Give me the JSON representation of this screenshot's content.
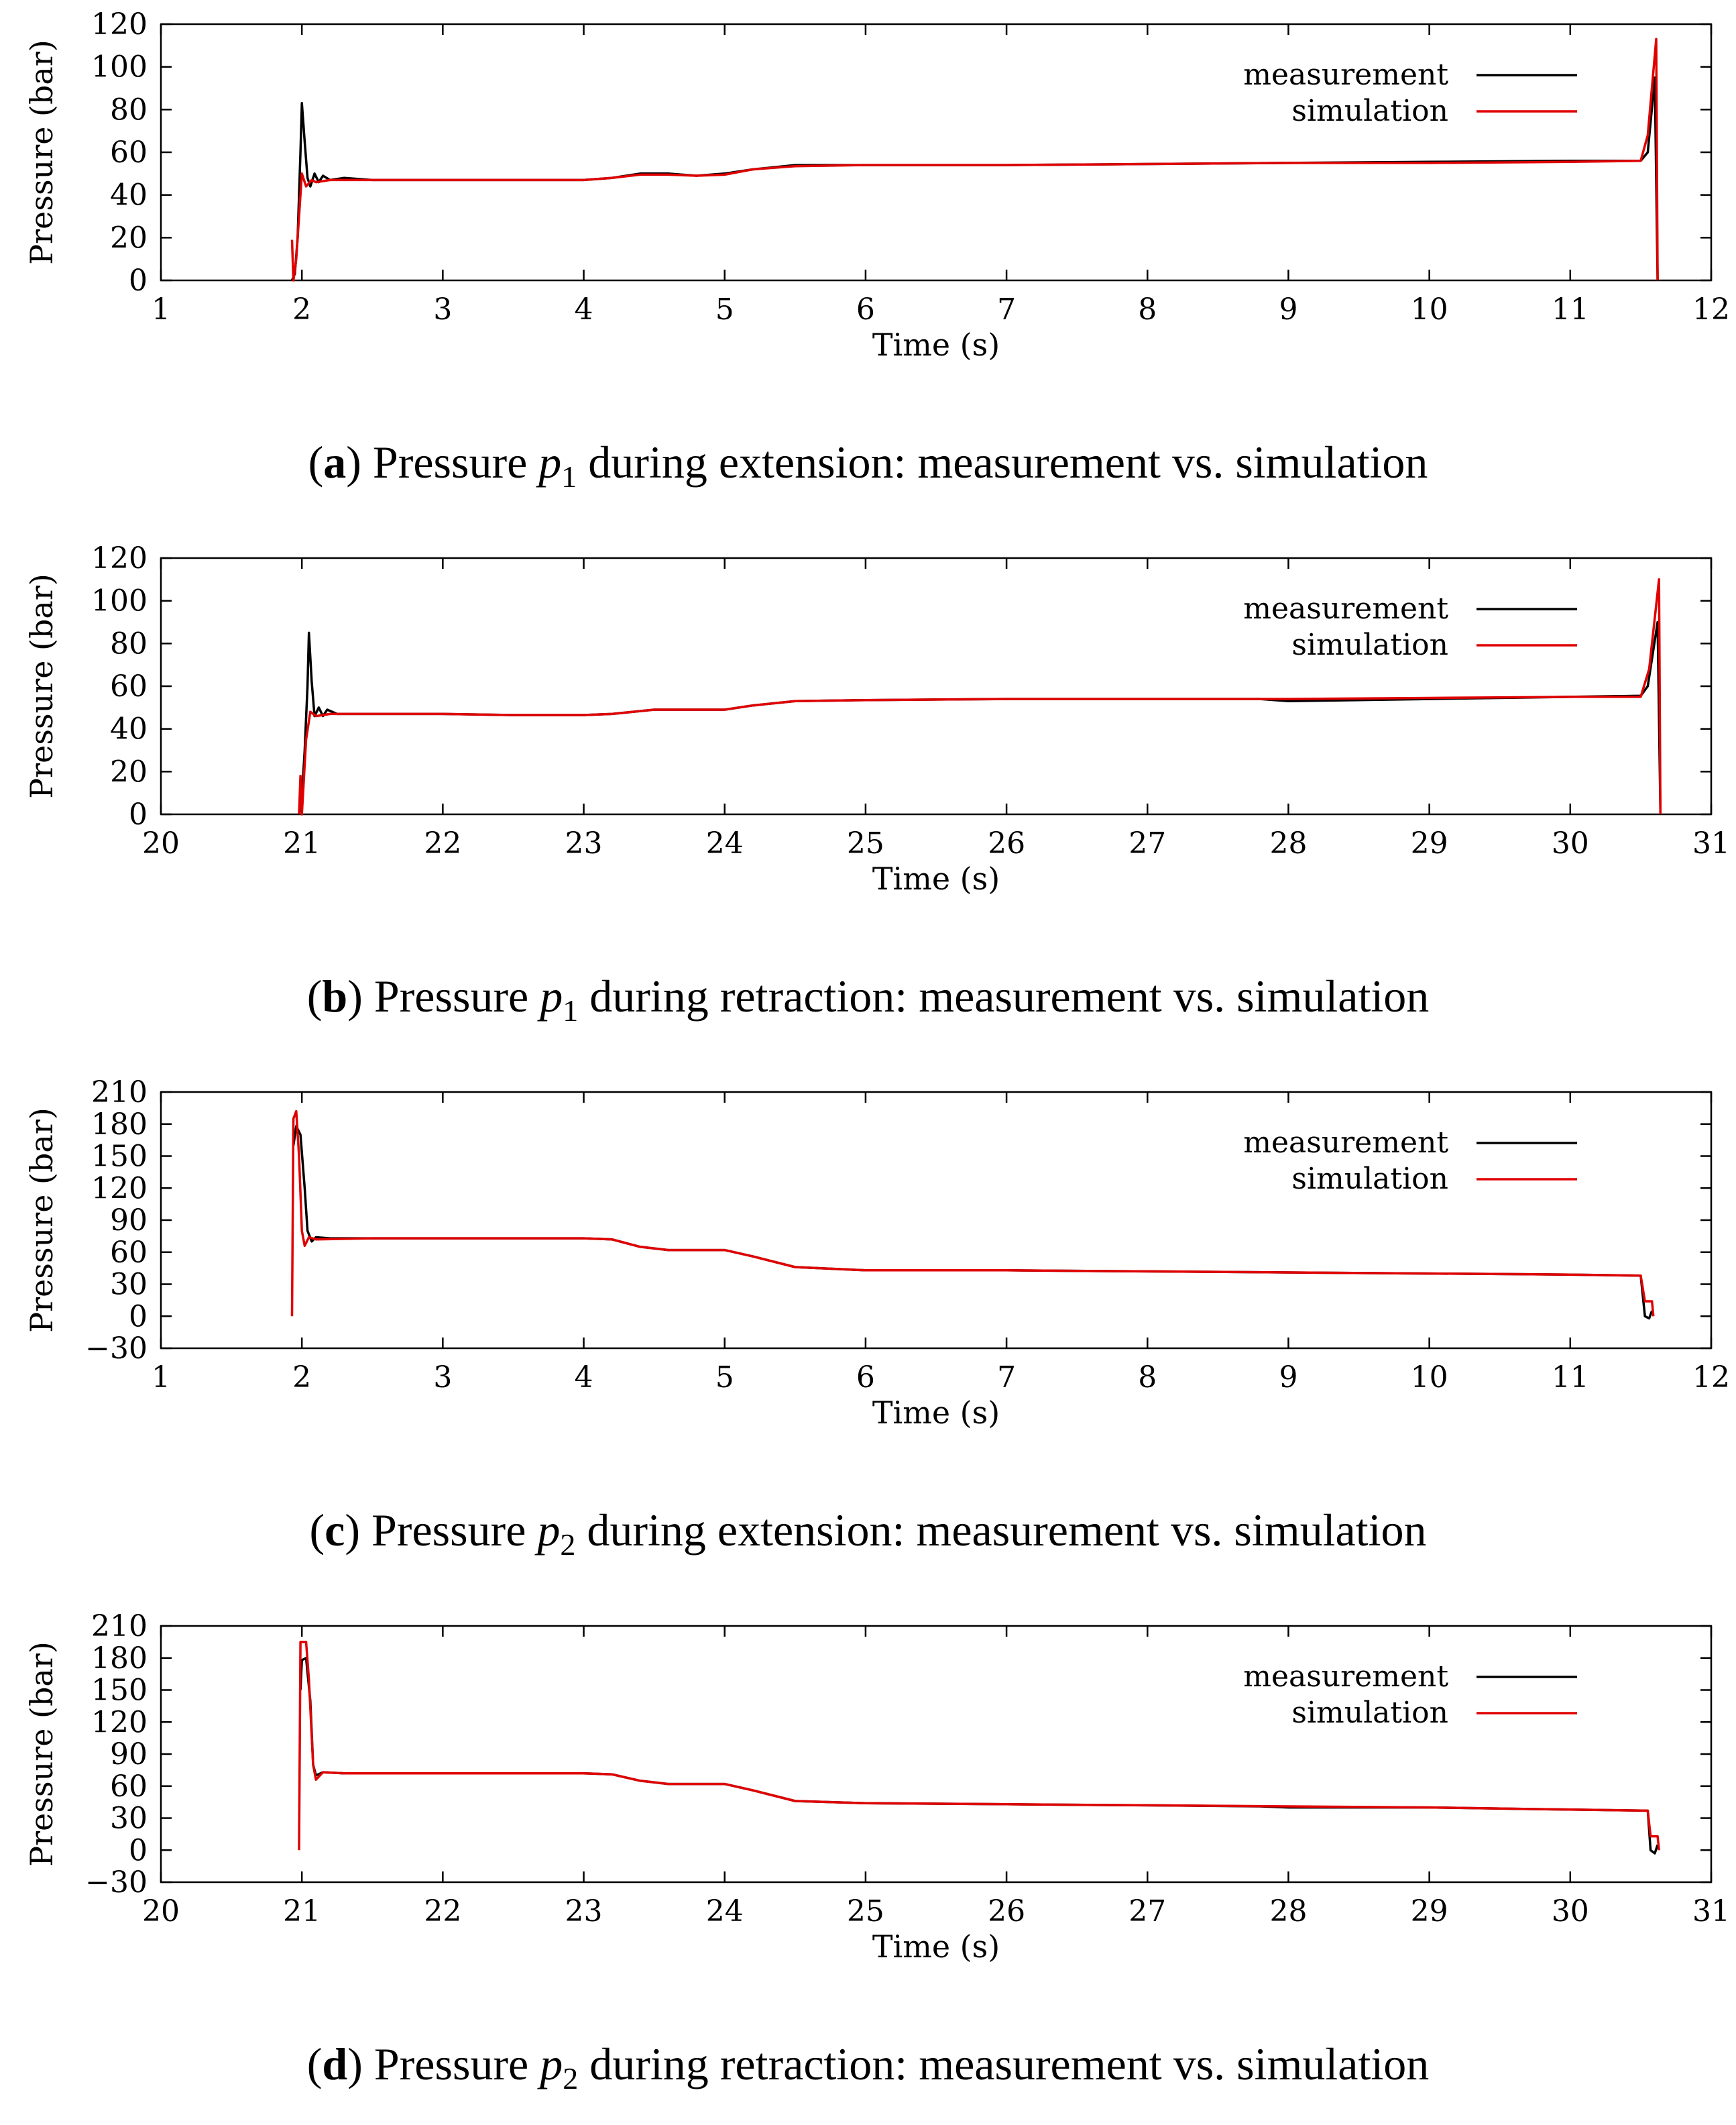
{
  "chart_data": [
    {
      "type": "line",
      "panel_label": "a",
      "caption_prefix": "Pressure ",
      "caption_var": "p",
      "caption_sub": "1",
      "caption_suffix": " during extension: measurement vs. simulation",
      "xlabel": "Time (s)",
      "ylabel": "Pressure (bar)",
      "xlim": [
        1,
        12
      ],
      "ylim": [
        0,
        120
      ],
      "xticks": [
        1,
        2,
        3,
        4,
        5,
        6,
        7,
        8,
        9,
        10,
        11,
        12
      ],
      "yticks": [
        0,
        20,
        40,
        60,
        80,
        100,
        120
      ],
      "legend": "top-right",
      "series": [
        {
          "name": "measurement",
          "color": "#000000",
          "points": [
            [
              1.93,
              0
            ],
            [
              1.95,
              3
            ],
            [
              1.97,
              20
            ],
            [
              1.99,
              60
            ],
            [
              2.0,
              83
            ],
            [
              2.02,
              65
            ],
            [
              2.04,
              48
            ],
            [
              2.06,
              44
            ],
            [
              2.09,
              50
            ],
            [
              2.12,
              46
            ],
            [
              2.15,
              49
            ],
            [
              2.2,
              47
            ],
            [
              2.3,
              48
            ],
            [
              2.5,
              47
            ],
            [
              3,
              47
            ],
            [
              3.5,
              47
            ],
            [
              4,
              47
            ],
            [
              4.2,
              48
            ],
            [
              4.4,
              50
            ],
            [
              4.6,
              50
            ],
            [
              4.8,
              49
            ],
            [
              5,
              50
            ],
            [
              5.2,
              52
            ],
            [
              5.5,
              54
            ],
            [
              6,
              54
            ],
            [
              7,
              54
            ],
            [
              8,
              54.5
            ],
            [
              9,
              55
            ],
            [
              10,
              55.5
            ],
            [
              11,
              56
            ],
            [
              11.5,
              56
            ],
            [
              11.55,
              60
            ],
            [
              11.6,
              95
            ],
            [
              11.62,
              0
            ]
          ]
        },
        {
          "name": "simulation",
          "color": "#e00000",
          "points": [
            [
              1.93,
              19
            ],
            [
              1.94,
              0
            ],
            [
              1.96,
              10
            ],
            [
              1.98,
              30
            ],
            [
              2.0,
              50
            ],
            [
              2.03,
              44
            ],
            [
              2.07,
              47
            ],
            [
              2.1,
              46
            ],
            [
              2.2,
              47
            ],
            [
              2.5,
              47
            ],
            [
              3,
              47
            ],
            [
              3.5,
              47
            ],
            [
              4,
              47
            ],
            [
              4.2,
              48
            ],
            [
              4.4,
              49.5
            ],
            [
              4.6,
              49.5
            ],
            [
              4.8,
              49
            ],
            [
              5,
              49.5
            ],
            [
              5.2,
              52
            ],
            [
              5.5,
              53.5
            ],
            [
              6,
              54
            ],
            [
              7,
              54
            ],
            [
              8,
              54.5
            ],
            [
              9,
              55
            ],
            [
              10,
              55
            ],
            [
              11,
              55.5
            ],
            [
              11.5,
              56
            ],
            [
              11.55,
              68
            ],
            [
              11.61,
              113
            ],
            [
              11.62,
              0
            ]
          ]
        }
      ]
    },
    {
      "type": "line",
      "panel_label": "b",
      "caption_prefix": "Pressure ",
      "caption_var": "p",
      "caption_sub": "1",
      "caption_suffix": " during retraction: measurement vs. simulation",
      "xlabel": "Time (s)",
      "ylabel": "Pressure (bar)",
      "xlim": [
        20,
        31
      ],
      "ylim": [
        0,
        120
      ],
      "xticks": [
        20,
        21,
        22,
        23,
        24,
        25,
        26,
        27,
        28,
        29,
        30,
        31
      ],
      "yticks": [
        0,
        20,
        40,
        60,
        80,
        100,
        120
      ],
      "legend": "top-right",
      "series": [
        {
          "name": "measurement",
          "color": "#000000",
          "points": [
            [
              20.98,
              0
            ],
            [
              21.0,
              8
            ],
            [
              21.02,
              30
            ],
            [
              21.04,
              60
            ],
            [
              21.05,
              85
            ],
            [
              21.07,
              62
            ],
            [
              21.09,
              46
            ],
            [
              21.12,
              50
            ],
            [
              21.15,
              46
            ],
            [
              21.18,
              49
            ],
            [
              21.25,
              47
            ],
            [
              21.5,
              47
            ],
            [
              22,
              47
            ],
            [
              22.5,
              46.5
            ],
            [
              23,
              46.5
            ],
            [
              23.2,
              47
            ],
            [
              23.5,
              49
            ],
            [
              23.8,
              49
            ],
            [
              24,
              49
            ],
            [
              24.2,
              51
            ],
            [
              24.5,
              53
            ],
            [
              25,
              53.5
            ],
            [
              26,
              54
            ],
            [
              27,
              54
            ],
            [
              27.8,
              54
            ],
            [
              28,
              53
            ],
            [
              29,
              54
            ],
            [
              30,
              55
            ],
            [
              30.5,
              55.5
            ],
            [
              30.55,
              60
            ],
            [
              30.62,
              90
            ],
            [
              30.64,
              0
            ]
          ]
        },
        {
          "name": "simulation",
          "color": "#e00000",
          "points": [
            [
              20.98,
              0
            ],
            [
              20.99,
              18
            ],
            [
              21.0,
              0
            ],
            [
              21.03,
              35
            ],
            [
              21.06,
              48
            ],
            [
              21.1,
              46
            ],
            [
              21.2,
              47
            ],
            [
              21.5,
              47
            ],
            [
              22,
              47
            ],
            [
              22.5,
              46.5
            ],
            [
              23,
              46.5
            ],
            [
              23.2,
              47
            ],
            [
              23.5,
              49
            ],
            [
              24,
              49
            ],
            [
              24.2,
              51
            ],
            [
              24.5,
              53
            ],
            [
              25,
              53.5
            ],
            [
              26,
              54
            ],
            [
              27,
              54
            ],
            [
              28,
              54
            ],
            [
              29,
              54.5
            ],
            [
              30,
              55
            ],
            [
              30.5,
              55
            ],
            [
              30.56,
              68
            ],
            [
              30.63,
              110
            ],
            [
              30.64,
              0
            ]
          ]
        }
      ]
    },
    {
      "type": "line",
      "panel_label": "c",
      "caption_prefix": "Pressure ",
      "caption_var": "p",
      "caption_sub": "2",
      "caption_suffix": " during extension: measurement vs. simulation",
      "xlabel": "Time (s)",
      "ylabel": "Pressure (bar)",
      "xlim": [
        1,
        12
      ],
      "ylim": [
        -30,
        210
      ],
      "xticks": [
        1,
        2,
        3,
        4,
        5,
        6,
        7,
        8,
        9,
        10,
        11,
        12
      ],
      "yticks": [
        -30,
        0,
        30,
        60,
        90,
        120,
        150,
        180,
        210
      ],
      "ytick_labels": [
        "−30",
        "0",
        "30",
        "60",
        "90",
        "120",
        "150",
        "180",
        "210"
      ],
      "legend": "top-right",
      "series": [
        {
          "name": "measurement",
          "color": "#000000",
          "points": [
            [
              1.94,
              160
            ],
            [
              1.96,
              178
            ],
            [
              1.99,
              170
            ],
            [
              2.02,
              120
            ],
            [
              2.04,
              80
            ],
            [
              2.07,
              70
            ],
            [
              2.1,
              74
            ],
            [
              2.2,
              73
            ],
            [
              2.5,
              73
            ],
            [
              3,
              73
            ],
            [
              3.5,
              73
            ],
            [
              4,
              73
            ],
            [
              4.2,
              72
            ],
            [
              4.4,
              65
            ],
            [
              4.6,
              62
            ],
            [
              5,
              62
            ],
            [
              5.2,
              56
            ],
            [
              5.5,
              46
            ],
            [
              6,
              43
            ],
            [
              7,
              43
            ],
            [
              8,
              42
            ],
            [
              9,
              41
            ],
            [
              10,
              40
            ],
            [
              11,
              39
            ],
            [
              11.5,
              38
            ],
            [
              11.53,
              0
            ],
            [
              11.56,
              -2
            ],
            [
              11.58,
              5
            ]
          ]
        },
        {
          "name": "simulation",
          "color": "#e00000",
          "points": [
            [
              1.93,
              0
            ],
            [
              1.94,
              185
            ],
            [
              1.96,
              192
            ],
            [
              1.98,
              150
            ],
            [
              2.0,
              80
            ],
            [
              2.02,
              66
            ],
            [
              2.05,
              74
            ],
            [
              2.1,
              72
            ],
            [
              2.5,
              73
            ],
            [
              3,
              73
            ],
            [
              3.5,
              73
            ],
            [
              4,
              73
            ],
            [
              4.2,
              72
            ],
            [
              4.4,
              65
            ],
            [
              4.6,
              62
            ],
            [
              5,
              62
            ],
            [
              5.2,
              56
            ],
            [
              5.5,
              46
            ],
            [
              6,
              43
            ],
            [
              7,
              43
            ],
            [
              8,
              42
            ],
            [
              9,
              41
            ],
            [
              10,
              40
            ],
            [
              11,
              39
            ],
            [
              11.5,
              38
            ],
            [
              11.53,
              14
            ],
            [
              11.58,
              14
            ],
            [
              11.59,
              0
            ]
          ]
        }
      ]
    },
    {
      "type": "line",
      "panel_label": "d",
      "caption_prefix": "Pressure ",
      "caption_var": "p",
      "caption_sub": "2",
      "caption_suffix": " during retraction: measurement vs. simulation",
      "xlabel": "Time (s)",
      "ylabel": "Pressure (bar)",
      "xlim": [
        20,
        31
      ],
      "ylim": [
        -30,
        210
      ],
      "xticks": [
        20,
        21,
        22,
        23,
        24,
        25,
        26,
        27,
        28,
        29,
        30,
        31
      ],
      "yticks": [
        -30,
        0,
        30,
        60,
        90,
        120,
        150,
        180,
        210
      ],
      "ytick_labels": [
        "−30",
        "0",
        "30",
        "60",
        "90",
        "120",
        "150",
        "180",
        "210"
      ],
      "legend": "top-right",
      "series": [
        {
          "name": "measurement",
          "color": "#000000",
          "points": [
            [
              20.99,
              150
            ],
            [
              21.0,
              178
            ],
            [
              21.03,
              180
            ],
            [
              21.06,
              140
            ],
            [
              21.08,
              80
            ],
            [
              21.1,
              70
            ],
            [
              21.15,
              73
            ],
            [
              21.3,
              72
            ],
            [
              22,
              72
            ],
            [
              22.5,
              72
            ],
            [
              23,
              72
            ],
            [
              23.2,
              71
            ],
            [
              23.4,
              65
            ],
            [
              23.6,
              62
            ],
            [
              24,
              62
            ],
            [
              24.2,
              56
            ],
            [
              24.5,
              46
            ],
            [
              25,
              44
            ],
            [
              26,
              43
            ],
            [
              27,
              42
            ],
            [
              27.8,
              41
            ],
            [
              28,
              40
            ],
            [
              29,
              40
            ],
            [
              30,
              38
            ],
            [
              30.55,
              37
            ],
            [
              30.57,
              0
            ],
            [
              30.6,
              -3
            ],
            [
              30.62,
              5
            ]
          ]
        },
        {
          "name": "simulation",
          "color": "#e00000",
          "points": [
            [
              20.98,
              0
            ],
            [
              20.99,
              195
            ],
            [
              21.03,
              195
            ],
            [
              21.05,
              160
            ],
            [
              21.08,
              80
            ],
            [
              21.1,
              66
            ],
            [
              21.15,
              73
            ],
            [
              21.3,
              72
            ],
            [
              22,
              72
            ],
            [
              22.5,
              72
            ],
            [
              23,
              72
            ],
            [
              23.2,
              71
            ],
            [
              23.4,
              65
            ],
            [
              23.6,
              62
            ],
            [
              24,
              62
            ],
            [
              24.2,
              56
            ],
            [
              24.5,
              46
            ],
            [
              25,
              44
            ],
            [
              26,
              43
            ],
            [
              27,
              42
            ],
            [
              28,
              41
            ],
            [
              29,
              40
            ],
            [
              30,
              38
            ],
            [
              30.55,
              37
            ],
            [
              30.57,
              13
            ],
            [
              30.62,
              13
            ],
            [
              30.63,
              0
            ]
          ]
        }
      ]
    }
  ]
}
